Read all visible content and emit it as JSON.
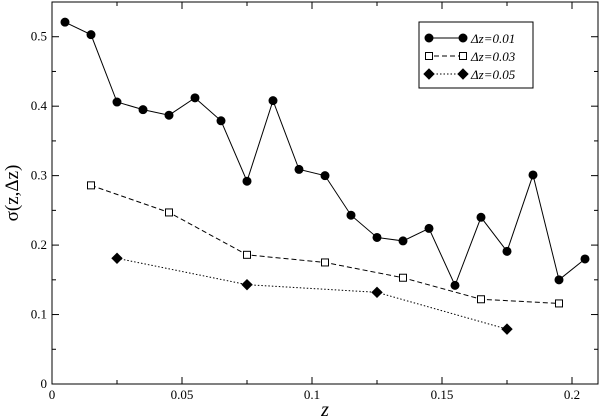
{
  "chart_data": {
    "type": "line",
    "xlabel": "z",
    "ylabel": "σ(z,Δz)",
    "xlim": [
      0,
      0.21
    ],
    "ylim": [
      0,
      0.55
    ],
    "xticks": [
      0,
      0.05,
      0.1,
      0.15,
      0.2
    ],
    "xtick_labels": [
      "0",
      "0.05",
      "0.1",
      "0.15",
      "0.2"
    ],
    "yticks": [
      0,
      0.1,
      0.2,
      0.3,
      0.4,
      0.5
    ],
    "ytick_labels": [
      "0",
      "0.1",
      "0.2",
      "0.3",
      "0.4",
      "0.5"
    ],
    "grid": false,
    "legend_position": "top-right",
    "series": [
      {
        "name": "Δz=0.01",
        "line_style": "solid",
        "marker": "filled-circle",
        "x": [
          0.005,
          0.015,
          0.025,
          0.035,
          0.045,
          0.055,
          0.065,
          0.075,
          0.085,
          0.095,
          0.105,
          0.115,
          0.125,
          0.135,
          0.145,
          0.155,
          0.165,
          0.175,
          0.185,
          0.195,
          0.205
        ],
        "y": [
          0.521,
          0.503,
          0.406,
          0.395,
          0.387,
          0.412,
          0.379,
          0.292,
          0.408,
          0.309,
          0.3,
          0.243,
          0.211,
          0.206,
          0.224,
          0.142,
          0.24,
          0.191,
          0.301,
          0.15,
          0.18
        ]
      },
      {
        "name": "Δz=0.03",
        "line_style": "dashed",
        "marker": "open-square",
        "x": [
          0.015,
          0.045,
          0.075,
          0.105,
          0.135,
          0.165,
          0.195
        ],
        "y": [
          0.286,
          0.247,
          0.186,
          0.175,
          0.153,
          0.122,
          0.116
        ]
      },
      {
        "name": "Δz=0.05",
        "line_style": "dotted",
        "marker": "filled-diamond",
        "x": [
          0.025,
          0.075,
          0.125,
          0.175
        ],
        "y": [
          0.181,
          0.143,
          0.132,
          0.079
        ]
      }
    ]
  }
}
